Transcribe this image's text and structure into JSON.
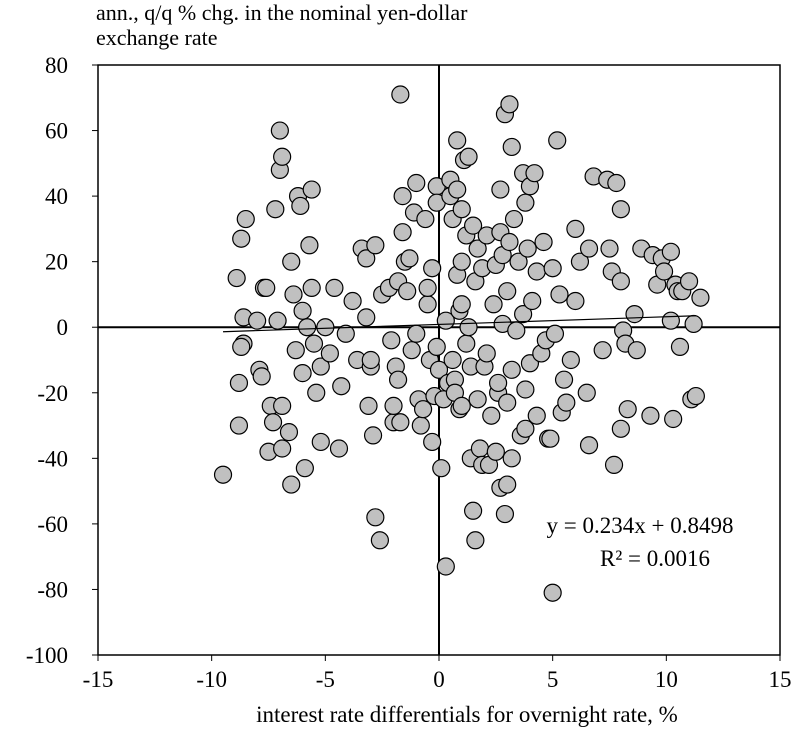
{
  "chart_data": {
    "type": "scatter",
    "title": "ann., q/q % chg. in the nominal yen-dollar exchange rate",
    "x_label": "interest rate differentials for overnight rate, %",
    "xlim": [
      -15,
      15
    ],
    "xticks": [
      -15,
      -10,
      -5,
      0,
      5,
      10,
      15
    ],
    "ylim": [
      -100,
      80
    ],
    "yticks": [
      -100,
      -80,
      -60,
      -40,
      -20,
      0,
      20,
      40,
      60,
      80
    ],
    "color": "#c0c0c0",
    "x": [
      -9.5,
      -8.9,
      -8.8,
      -8.7,
      -8.6,
      -8.6,
      -8.8,
      -8.5,
      -8.7,
      -8,
      -7.9,
      -7.8,
      -7.7,
      -7.6,
      -7.5,
      -7.4,
      -7.3,
      -7.1,
      -7.2,
      -7,
      -7,
      -6.9,
      -6.9,
      -6.9,
      -6.6,
      -6.5,
      -6.5,
      -6.4,
      -6.3,
      -6.2,
      -6.1,
      -6,
      -6,
      -5.9,
      -5.8,
      -5.7,
      -5.6,
      -5.6,
      -5.5,
      -5.4,
      -5.2,
      -5.2,
      -5,
      -4.8,
      -4.6,
      -4.4,
      -4.3,
      -4.1,
      -3.8,
      -3.6,
      -3.4,
      -3.2,
      -3.2,
      -3.1,
      -3,
      -3,
      -2.9,
      -2.8,
      -2.8,
      -2.6,
      -2.5,
      -2.2,
      -2.1,
      -2,
      -2,
      -1.9,
      -1.8,
      -1.8,
      -1.7,
      -1.7,
      -1.6,
      -1.6,
      -1.5,
      -1.4,
      -1.3,
      -1.2,
      -1.1,
      -1,
      -1,
      -0.9,
      -0.8,
      -0.7,
      -0.6,
      -0.5,
      -0.5,
      -0.4,
      -0.3,
      -0.3,
      -0.2,
      -0.1,
      -0.1,
      -0.1,
      0,
      0.1,
      0.2,
      0.3,
      0.3,
      0.4,
      0.5,
      0.5,
      0.6,
      0.6,
      0.7,
      0.7,
      0.8,
      0.8,
      0.8,
      0.9,
      0.9,
      1,
      1,
      1,
      1,
      1.1,
      1.2,
      1.2,
      1.3,
      1.3,
      1.4,
      1.4,
      1.5,
      1.5,
      1.6,
      1.6,
      1.7,
      1.7,
      1.8,
      1.9,
      1.9,
      2,
      2.1,
      2.1,
      2.2,
      2.3,
      2.4,
      2.5,
      2.5,
      2.6,
      2.6,
      2.7,
      2.7,
      2.7,
      2.8,
      2.8,
      2.9,
      2.9,
      3,
      3,
      3,
      3.1,
      3.1,
      3.2,
      3.2,
      3.2,
      3.3,
      3.4,
      3.5,
      3.6,
      3.7,
      3.7,
      3.8,
      3.8,
      3.8,
      3.9,
      4,
      4,
      4.1,
      4.2,
      4.3,
      4.3,
      4.5,
      4.6,
      4.7,
      4.8,
      4.9,
      5,
      5,
      5.1,
      5.2,
      5.3,
      5.4,
      5.5,
      5.6,
      5.8,
      6,
      6,
      6.2,
      6.5,
      6.6,
      6.6,
      6.8,
      7.2,
      7.4,
      7.5,
      7.6,
      7.7,
      7.8,
      8,
      8,
      8,
      8.1,
      8.2,
      8.3,
      8.6,
      8.7,
      8.9,
      9.3,
      9.4,
      9.6,
      9.8,
      9.9,
      10.2,
      10.2,
      10.3,
      10.4,
      10.5,
      10.6,
      10.7,
      11,
      11.1,
      11.2,
      11.3,
      11.5
    ],
    "values": [
      -45,
      15,
      -17,
      27,
      3,
      -5,
      -30,
      33,
      -6,
      2,
      -13,
      -15,
      12,
      12,
      -38,
      -24,
      -29,
      2,
      36,
      48,
      60,
      52,
      -24,
      -37,
      -32,
      -48,
      20,
      10,
      -7,
      40,
      37,
      -14,
      5,
      -43,
      0,
      25,
      42,
      12,
      -5,
      -20,
      -12,
      -35,
      0,
      -8,
      12,
      -37,
      -18,
      -2,
      8,
      -10,
      24,
      21,
      3,
      -24,
      -12,
      -10,
      -33,
      25,
      -58,
      -65,
      10,
      12,
      -4,
      -29,
      -24,
      -12,
      -16,
      14,
      -29,
      71,
      40,
      29,
      20,
      11,
      21,
      -7,
      35,
      44,
      -2,
      -22,
      -30,
      -25,
      33,
      7,
      12,
      -10,
      18,
      -35,
      -21,
      43,
      38,
      -6,
      -13,
      -43,
      -22,
      -73,
      2,
      -17,
      45,
      40,
      33,
      -10,
      -16,
      -20,
      57,
      42,
      16,
      -25,
      5,
      7,
      36,
      20,
      -24,
      51,
      28,
      -5,
      52,
      0,
      -12,
      -40,
      31,
      -56,
      14,
      -65,
      24,
      -22,
      -37,
      -42,
      18,
      -12,
      28,
      -8,
      -42,
      -27,
      7,
      19,
      -38,
      -20,
      -17,
      42,
      29,
      -49,
      22,
      1,
      65,
      -57,
      -23,
      -48,
      11,
      68,
      26,
      55,
      -13,
      -40,
      33,
      -1,
      20,
      -33,
      47,
      4,
      38,
      -19,
      -31,
      24,
      43,
      -11,
      8,
      47,
      17,
      -27,
      -8,
      26,
      -4,
      -34,
      -34,
      18,
      -81,
      -2,
      57,
      10,
      -26,
      -16,
      -23,
      -10,
      8,
      30,
      20,
      -20,
      24,
      -36,
      46,
      -7,
      45,
      24,
      17,
      -42,
      44,
      36,
      14,
      -31,
      -1,
      -5,
      -25,
      4,
      -7,
      24,
      -27,
      22,
      13,
      21,
      17,
      23,
      2,
      -28,
      13,
      11,
      -6,
      11,
      14,
      -22,
      1,
      -21,
      9
    ],
    "trendline": {
      "slope": 0.234,
      "intercept": 0.8498,
      "xlim": [
        -9.5,
        11.3
      ],
      "label": "y = 0.234x + 0.8498",
      "r2_label": "R² = 0.0016"
    }
  }
}
